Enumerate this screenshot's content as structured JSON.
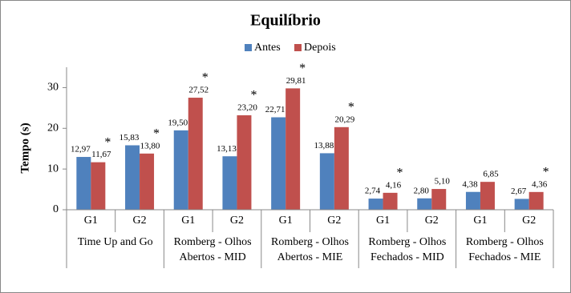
{
  "chart_data": {
    "type": "bar",
    "title": "Equilíbrio",
    "y_label": "Tempo (s)",
    "categories": [
      "G1",
      "G2",
      "G1",
      "G2",
      "G1",
      "G2",
      "G1",
      "G2",
      "G1",
      "G2"
    ],
    "groups": [
      [
        "Time Up and Go"
      ],
      [
        "Romberg - Olhos",
        "Abertos - MID"
      ],
      [
        "Romberg - Olhos",
        "Abertos - MIE"
      ],
      [
        "Romberg - Olhos",
        "Fechados - MID"
      ],
      [
        "Romberg - Olhos",
        "Fechados - MIE"
      ]
    ],
    "series": [
      {
        "name": "Antes",
        "color": "#4f81bd",
        "values": [
          12.97,
          15.83,
          19.5,
          13.13,
          22.71,
          13.88,
          2.74,
          2.8,
          4.38,
          2.67
        ],
        "value_labels": [
          "12,97",
          "15,83",
          "19,50",
          "13,13",
          "22,71",
          "13,88",
          "2,74",
          "2,80",
          "4,38",
          "2,67"
        ]
      },
      {
        "name": "Depois",
        "color": "#c0504d",
        "values": [
          11.67,
          13.8,
          27.52,
          23.2,
          29.81,
          20.29,
          4.16,
          5.1,
          6.85,
          4.36
        ],
        "value_labels": [
          "11,67",
          "13,80",
          "27,52",
          "23,20",
          "29,81",
          "20,29",
          "4,16",
          "5,10",
          "6,85",
          "4,36"
        ],
        "markers": [
          "*",
          "*",
          "*",
          "*",
          "*",
          "*",
          "*",
          null,
          null,
          "*"
        ]
      }
    ],
    "ylim": [
      0,
      35
    ],
    "yticks": [
      0,
      10,
      20,
      30
    ],
    "legend": "top"
  }
}
